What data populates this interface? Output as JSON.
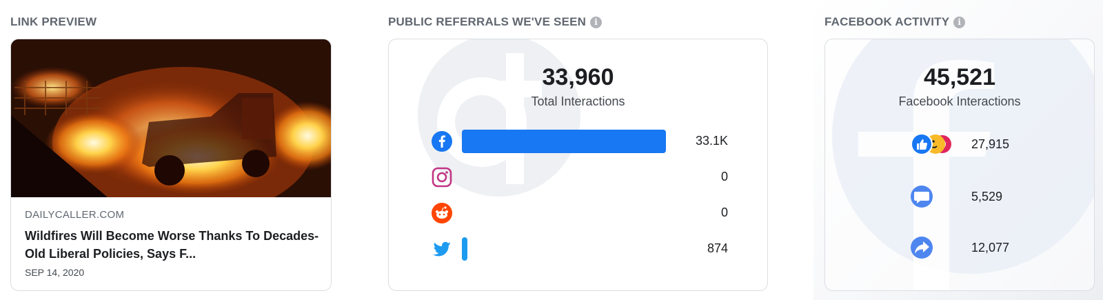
{
  "link_preview": {
    "title": "LINK PREVIEW",
    "domain": "DAILYCALLER.COM",
    "headline": "Wildfires Will Become Worse Thanks To Decades-Old Liberal Policies, Says F...",
    "date": "SEP 14, 2020"
  },
  "referrals": {
    "title": "PUBLIC REFERRALS WE'VE SEEN",
    "total": "33,960",
    "total_label": "Total Interactions",
    "rows": [
      {
        "platform": "facebook",
        "icon": "facebook-icon",
        "value": "33.1K",
        "amount": 33100,
        "color": "#1877f2"
      },
      {
        "platform": "instagram",
        "icon": "instagram-icon",
        "value": "0",
        "amount": 0,
        "color": "#c13584"
      },
      {
        "platform": "reddit",
        "icon": "reddit-icon",
        "value": "0",
        "amount": 0,
        "color": "#ff4500"
      },
      {
        "platform": "twitter",
        "icon": "twitter-icon",
        "value": "874",
        "amount": 874,
        "color": "#1d9bf0"
      }
    ],
    "max_amount": 33100
  },
  "facebook_activity": {
    "title": "FACEBOOK ACTIVITY",
    "total": "45,521",
    "total_label": "Facebook Interactions",
    "rows": [
      {
        "type": "reactions",
        "icon": "reactions-icon",
        "value": "27,915"
      },
      {
        "type": "comments",
        "icon": "comment-icon",
        "value": "5,529"
      },
      {
        "type": "shares",
        "icon": "share-icon",
        "value": "12,077"
      }
    ]
  }
}
